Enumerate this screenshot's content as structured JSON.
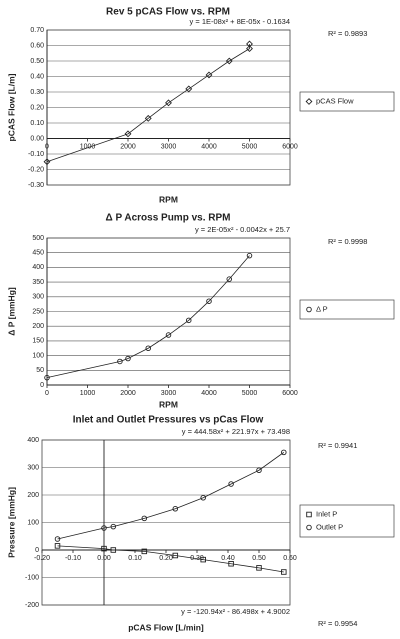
{
  "chart_data": [
    {
      "type": "scatter",
      "title": "Rev 5 pCAS Flow vs. RPM",
      "x_label": "RPM",
      "y_label": "pCAS Flow [L/m]",
      "x": [
        0,
        2000,
        2500,
        3000,
        3500,
        4000,
        4500,
        5000,
        5000
      ],
      "series": [
        {
          "name": "pCAS Flow",
          "color": "#222222",
          "marker": "diamond",
          "values": [
            -0.15,
            0.03,
            0.13,
            0.23,
            0.32,
            0.41,
            0.5,
            0.58,
            0.61
          ]
        }
      ],
      "xlim": [
        0,
        6000
      ],
      "xticks": [
        0,
        1000,
        2000,
        3000,
        4000,
        5000,
        6000
      ],
      "ylim": [
        -0.3,
        0.7
      ],
      "yticks": [
        {
          "value": -0.3,
          "label": "-0.30"
        },
        {
          "value": -0.2,
          "label": "-0.20"
        },
        {
          "value": -0.1,
          "label": "-0.10"
        },
        {
          "value": 0,
          "label": "0.00"
        },
        {
          "value": 0.1,
          "label": "0.10"
        },
        {
          "value": 0.2,
          "label": "0.20"
        },
        {
          "value": 0.3,
          "label": "0.30"
        },
        {
          "value": 0.4,
          "label": "0.40"
        },
        {
          "value": 0.5,
          "label": "0.50"
        },
        {
          "value": 0.6,
          "label": "0.60"
        },
        {
          "value": 0.7,
          "label": "0.70"
        }
      ],
      "grid": true,
      "annotations": [
        "y = 1E-08x² + 8E-05x - 0.1634",
        "R² = 0.9893"
      ]
    },
    {
      "type": "scatter",
      "title": "Δ P Across Pump vs. RPM",
      "x_label": "RPM",
      "y_label": "Δ P [mmHg]",
      "x": [
        0,
        1800,
        2000,
        2500,
        3000,
        3500,
        4000,
        4500,
        5000
      ],
      "series": [
        {
          "name": "Δ P",
          "color": "#222222",
          "marker": "circle",
          "values": [
            25,
            80,
            90,
            125,
            170,
            220,
            285,
            360,
            440
          ]
        }
      ],
      "xlim": [
        0,
        6000
      ],
      "xticks": [
        0,
        1000,
        2000,
        3000,
        4000,
        5000,
        6000
      ],
      "ylim": [
        0,
        500
      ],
      "yticks": [
        0,
        50,
        100,
        150,
        200,
        250,
        300,
        350,
        400,
        450,
        500
      ],
      "grid": true,
      "annotations": [
        "y = 2E-05x² - 0.0042x + 25.7",
        "R² = 0.9998"
      ]
    },
    {
      "type": "scatter",
      "title": "Inlet and Outlet Pressures vs pCas Flow",
      "x_label": "pCAS Flow [L/min]",
      "y_label": "Pressure [mmHg]",
      "x": [
        -0.15,
        0,
        0.03,
        0.13,
        0.23,
        0.32,
        0.41,
        0.5,
        0.58
      ],
      "series": [
        {
          "name": "Inlet P",
          "color": "#222222",
          "marker": "square",
          "values": [
            15,
            5,
            0,
            -5,
            -20,
            -35,
            -50,
            -65,
            -80
          ]
        },
        {
          "name": "Outlet P",
          "color": "#222222",
          "marker": "circle",
          "values": [
            40,
            80,
            85,
            115,
            150,
            190,
            240,
            290,
            355
          ]
        }
      ],
      "xlim": [
        -0.2,
        0.6
      ],
      "xticks": [
        {
          "value": -0.2,
          "label": "-0.20"
        },
        {
          "value": -0.1,
          "label": "-0.10"
        },
        {
          "value": 0,
          "label": "0.00"
        },
        {
          "value": 0.1,
          "label": "0.10"
        },
        {
          "value": 0.2,
          "label": "0.20"
        },
        {
          "value": 0.3,
          "label": "0.30"
        },
        {
          "value": 0.4,
          "label": "0.40"
        },
        {
          "value": 0.5,
          "label": "0.50"
        },
        {
          "value": 0.6,
          "label": "0.60"
        }
      ],
      "ylim": [
        -200,
        400
      ],
      "yticks": [
        -200,
        -100,
        0,
        100,
        200,
        300,
        400
      ],
      "grid": true,
      "annotations": [
        "y = 444.58x² + 221.97x + 73.498",
        "R² = 0.9941",
        "y = -120.94x² - 86.498x + 4.9002",
        "R² = 0.9954"
      ]
    }
  ]
}
